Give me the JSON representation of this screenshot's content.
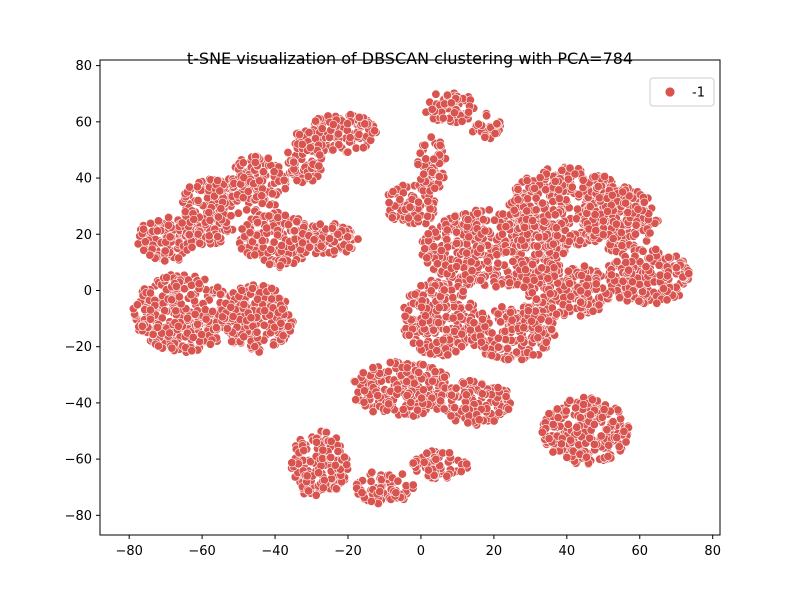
{
  "chart_data": {
    "type": "scatter",
    "title": "t-SNE visualization of DBSCAN clustering with PCA=784",
    "xlabel": "",
    "ylabel": "",
    "xlim": [
      -88,
      82
    ],
    "ylim": [
      -87,
      82
    ],
    "xticks": [
      -80,
      -60,
      -40,
      -20,
      0,
      20,
      40,
      60,
      80
    ],
    "yticks": [
      -80,
      -60,
      -40,
      -20,
      0,
      20,
      40,
      60,
      80
    ],
    "xtick_labels": [
      "−80",
      "−60",
      "−40",
      "−20",
      "0",
      "20",
      "40",
      "60",
      "80"
    ],
    "ytick_labels": [
      "−80",
      "−60",
      "−40",
      "−20",
      "0",
      "20",
      "40",
      "60",
      "80"
    ],
    "grid": false,
    "legend": {
      "placement": "top-right",
      "entries": [
        {
          "label": "-1",
          "color": "#d9534f"
        }
      ]
    },
    "series": [
      {
        "name": "-1",
        "color": "#d9534f",
        "clusters": [
          {
            "cx": -65,
            "cy": -8,
            "rx": 14,
            "ry": 14
          },
          {
            "cx": -45,
            "cy": -10,
            "rx": 10,
            "ry": 12
          },
          {
            "cx": -70,
            "cy": 18,
            "rx": 8,
            "ry": 8
          },
          {
            "cx": -58,
            "cy": 28,
            "rx": 8,
            "ry": 12
          },
          {
            "cx": -45,
            "cy": 38,
            "rx": 8,
            "ry": 10
          },
          {
            "cx": -40,
            "cy": 18,
            "rx": 10,
            "ry": 10
          },
          {
            "cx": -22,
            "cy": 56,
            "rx": 10,
            "ry": 7
          },
          {
            "cx": -32,
            "cy": 47,
            "rx": 5,
            "ry": 10
          },
          {
            "cx": -25,
            "cy": 18,
            "rx": 8,
            "ry": 6
          },
          {
            "cx": -3,
            "cy": 30,
            "rx": 7,
            "ry": 8
          },
          {
            "cx": 3,
            "cy": 45,
            "rx": 4,
            "ry": 10
          },
          {
            "cx": 8,
            "cy": 65,
            "rx": 7,
            "ry": 6
          },
          {
            "cx": 18,
            "cy": 58,
            "rx": 4,
            "ry": 5
          },
          {
            "cx": 20,
            "cy": 15,
            "rx": 20,
            "ry": 14
          },
          {
            "cx": 40,
            "cy": 30,
            "rx": 16,
            "ry": 14
          },
          {
            "cx": 55,
            "cy": 25,
            "rx": 10,
            "ry": 12
          },
          {
            "cx": 62,
            "cy": 5,
            "rx": 12,
            "ry": 10
          },
          {
            "cx": 40,
            "cy": 0,
            "rx": 12,
            "ry": 10
          },
          {
            "cx": 5,
            "cy": -10,
            "rx": 10,
            "ry": 14
          },
          {
            "cx": 25,
            "cy": -15,
            "rx": 12,
            "ry": 10
          },
          {
            "cx": -5,
            "cy": -35,
            "rx": 14,
            "ry": 10
          },
          {
            "cx": 15,
            "cy": -40,
            "rx": 10,
            "ry": 8
          },
          {
            "cx": 45,
            "cy": -50,
            "rx": 12,
            "ry": 12
          },
          {
            "cx": -28,
            "cy": -62,
            "rx": 8,
            "ry": 12
          },
          {
            "cx": -10,
            "cy": -70,
            "rx": 8,
            "ry": 6
          },
          {
            "cx": 5,
            "cy": -62,
            "rx": 8,
            "ry": 5
          }
        ]
      }
    ]
  }
}
